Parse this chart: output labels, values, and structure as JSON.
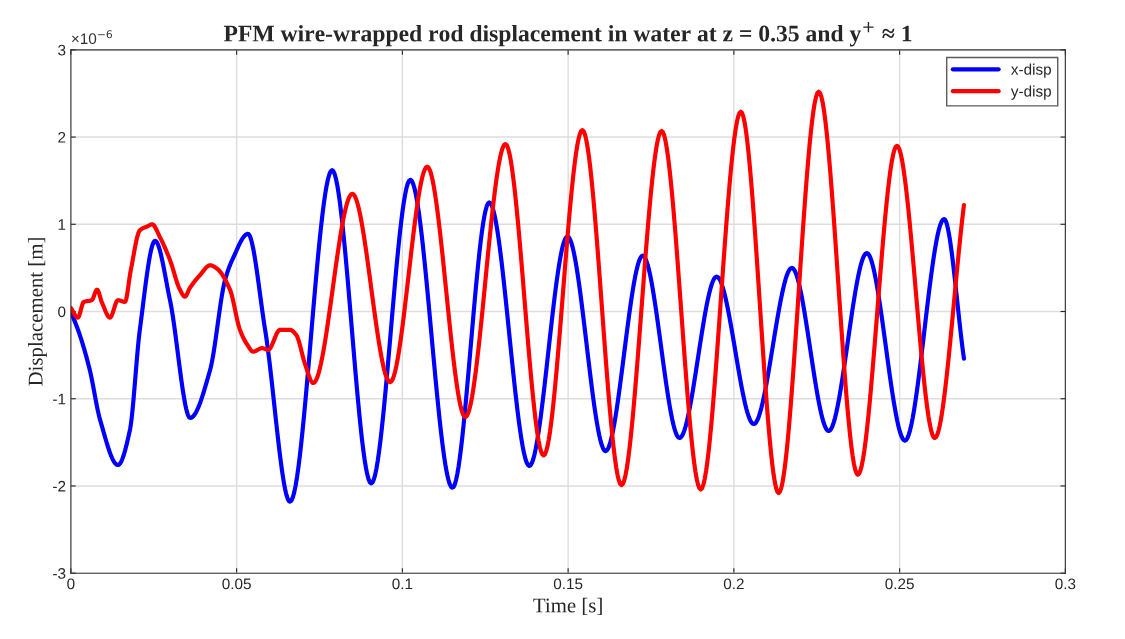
{
  "chart_data": {
    "type": "line",
    "title": "PFM wire-wrapped rod displacement in water at z = 0.35 and y$^{+}$ ≈ 1",
    "xlabel": "Time [s]",
    "ylabel": "Displacement [m]",
    "annotations": [
      "×10$^{−6}$"
    ],
    "series": [
      {
        "name": "x-disp",
        "color": "#0000ff",
        "x": [
          0,
          0.0027,
          0.0057,
          0.0088,
          0.0142,
          0.0178,
          0.0208,
          0.0254,
          0.0299,
          0.036,
          0.042,
          0.0465,
          0.0489,
          0.0534,
          0.0586,
          0.0661,
          0.0788,
          0.0906,
          0.1024,
          0.1151,
          0.1262,
          0.1383,
          0.1498,
          0.1613,
          0.1725,
          0.1836,
          0.1948,
          0.206,
          0.2175,
          0.2286,
          0.2401,
          0.2516,
          0.2634,
          0.2694
        ],
        "values": [
          0,
          -0.27,
          -0.67,
          -1.24,
          -1.76,
          -1.36,
          -0.21,
          0.81,
          0.13,
          -1.22,
          -0.67,
          0.36,
          0.61,
          0.89,
          -0.21,
          -2.18,
          1.62,
          -1.97,
          1.51,
          -2.02,
          1.25,
          -1.77,
          0.86,
          -1.6,
          0.64,
          -1.45,
          0.4,
          -1.29,
          0.5,
          -1.37,
          0.67,
          -1.48,
          1.06,
          -0.54
        ]
      },
      {
        "name": "y-disp",
        "color": "#ff0000",
        "x": [
          0,
          0.0021,
          0.0039,
          0.0063,
          0.0079,
          0.0094,
          0.0118,
          0.0142,
          0.0163,
          0.0181,
          0.0208,
          0.0233,
          0.0245,
          0.0269,
          0.0299,
          0.0329,
          0.0344,
          0.0359,
          0.039,
          0.042,
          0.0438,
          0.048,
          0.051,
          0.0532,
          0.055,
          0.0577,
          0.0595,
          0.0631,
          0.0661,
          0.068,
          0.0707,
          0.0731,
          0.0849,
          0.0963,
          0.1075,
          0.119,
          0.1311,
          0.1426,
          0.1543,
          0.1661,
          0.1782,
          0.19,
          0.2021,
          0.2135,
          0.2256,
          0.2374,
          0.2492,
          0.2606,
          0.2694
        ],
        "values": [
          0.04,
          -0.07,
          0.11,
          0.13,
          0.25,
          0.1,
          -0.07,
          0.13,
          0.11,
          0.48,
          0.93,
          0.98,
          1.0,
          0.85,
          0.59,
          0.25,
          0.17,
          0.27,
          0.42,
          0.53,
          0.5,
          0.25,
          -0.21,
          -0.38,
          -0.46,
          -0.42,
          -0.44,
          -0.21,
          -0.21,
          -0.27,
          -0.61,
          -0.82,
          1.35,
          -0.81,
          1.66,
          -1.21,
          1.92,
          -1.65,
          2.08,
          -1.99,
          2.07,
          -2.04,
          2.29,
          -2.08,
          2.52,
          -1.87,
          1.9,
          -1.45,
          1.22
        ]
      }
    ],
    "xlim": [
      0,
      0.3
    ],
    "xticks": [
      0,
      0.05,
      0.1,
      0.15,
      0.2,
      0.25,
      0.3
    ],
    "ylim": [
      -3,
      3
    ],
    "yticks": [
      -3,
      -2,
      -1,
      0,
      1,
      2,
      3
    ],
    "grid": true,
    "legend": "top right",
    "marker": "none",
    "line_style": "solid"
  }
}
